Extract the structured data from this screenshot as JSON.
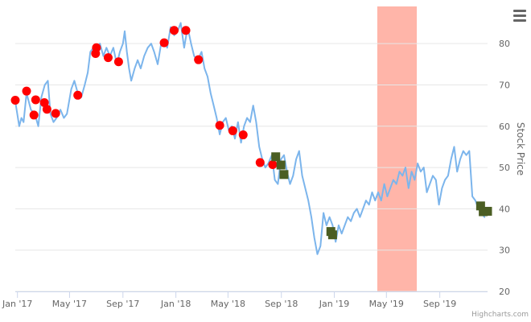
{
  "chart_data": {
    "type": "line",
    "title": "",
    "xlabel": "",
    "ylabel": "Stock Price",
    "ylim": [
      20,
      89
    ],
    "xlim": [
      "2016-12-27",
      "2019-12-20"
    ],
    "grid": "horizontal",
    "legend": "none",
    "x_ticks": [
      {
        "date": "2017-01-01",
        "label": "Jan '17"
      },
      {
        "date": "2017-05-01",
        "label": "May '17"
      },
      {
        "date": "2017-09-01",
        "label": "Sep '17"
      },
      {
        "date": "2018-01-01",
        "label": "Jan '18"
      },
      {
        "date": "2018-05-01",
        "label": "May '18"
      },
      {
        "date": "2018-09-01",
        "label": "Sep '18"
      },
      {
        "date": "2019-01-01",
        "label": "Jan '19"
      },
      {
        "date": "2019-05-01",
        "label": "May '19"
      },
      {
        "date": "2019-09-01",
        "label": "Sep '19"
      }
    ],
    "y_ticks": [
      20,
      30,
      40,
      50,
      60,
      70,
      80
    ],
    "band": {
      "from": "2019-04-10",
      "to": "2019-07-10",
      "color": "#ffb5a9"
    },
    "series": [
      {
        "type": "line",
        "color": "#7cb5ec",
        "points": [
          [
            "2016-12-27",
            66
          ],
          [
            "2017-01-05",
            60
          ],
          [
            "2017-01-10",
            62
          ],
          [
            "2017-01-15",
            61
          ],
          [
            "2017-01-22",
            68
          ],
          [
            "2017-02-01",
            64
          ],
          [
            "2017-02-10",
            63
          ],
          [
            "2017-02-18",
            60
          ],
          [
            "2017-02-25",
            67
          ],
          [
            "2017-03-05",
            70
          ],
          [
            "2017-03-12",
            71
          ],
          [
            "2017-03-18",
            63
          ],
          [
            "2017-03-25",
            61
          ],
          [
            "2017-04-01",
            62
          ],
          [
            "2017-04-10",
            64
          ],
          [
            "2017-04-18",
            62
          ],
          [
            "2017-04-25",
            63
          ],
          [
            "2017-05-05",
            69
          ],
          [
            "2017-05-12",
            71
          ],
          [
            "2017-05-20",
            68
          ],
          [
            "2017-05-28",
            67
          ],
          [
            "2017-06-05",
            70
          ],
          [
            "2017-06-12",
            73
          ],
          [
            "2017-06-18",
            78
          ],
          [
            "2017-06-25",
            79
          ],
          [
            "2017-07-02",
            78
          ],
          [
            "2017-07-10",
            80
          ],
          [
            "2017-07-18",
            77
          ],
          [
            "2017-07-25",
            79
          ],
          [
            "2017-08-02",
            77
          ],
          [
            "2017-08-10",
            79
          ],
          [
            "2017-08-18",
            75
          ],
          [
            "2017-08-25",
            78
          ],
          [
            "2017-09-01",
            80
          ],
          [
            "2017-09-05",
            83
          ],
          [
            "2017-09-10",
            78
          ],
          [
            "2017-09-15",
            74
          ],
          [
            "2017-09-20",
            71
          ],
          [
            "2017-09-28",
            74
          ],
          [
            "2017-10-05",
            76
          ],
          [
            "2017-10-12",
            74
          ],
          [
            "2017-10-20",
            77
          ],
          [
            "2017-10-28",
            79
          ],
          [
            "2017-11-05",
            80
          ],
          [
            "2017-11-12",
            78
          ],
          [
            "2017-11-20",
            75
          ],
          [
            "2017-11-28",
            80
          ],
          [
            "2017-12-05",
            81
          ],
          [
            "2017-12-12",
            79
          ],
          [
            "2017-12-20",
            84
          ],
          [
            "2017-12-28",
            82
          ],
          [
            "2018-01-05",
            83
          ],
          [
            "2018-01-12",
            85
          ],
          [
            "2018-01-20",
            79
          ],
          [
            "2018-01-28",
            84
          ],
          [
            "2018-02-05",
            80
          ],
          [
            "2018-02-12",
            77
          ],
          [
            "2018-02-20",
            76
          ],
          [
            "2018-03-01",
            78
          ],
          [
            "2018-03-08",
            74
          ],
          [
            "2018-03-15",
            72
          ],
          [
            "2018-03-22",
            68
          ],
          [
            "2018-03-29",
            65
          ],
          [
            "2018-04-05",
            62
          ],
          [
            "2018-04-12",
            58
          ],
          [
            "2018-04-19",
            61
          ],
          [
            "2018-04-26",
            62
          ],
          [
            "2018-05-03",
            59
          ],
          [
            "2018-05-10",
            60
          ],
          [
            "2018-05-17",
            57
          ],
          [
            "2018-05-24",
            61
          ],
          [
            "2018-05-31",
            56
          ],
          [
            "2018-06-07",
            60
          ],
          [
            "2018-06-14",
            62
          ],
          [
            "2018-06-21",
            61
          ],
          [
            "2018-06-28",
            65
          ],
          [
            "2018-07-05",
            61
          ],
          [
            "2018-07-12",
            55
          ],
          [
            "2018-07-19",
            52
          ],
          [
            "2018-07-26",
            50
          ],
          [
            "2018-08-02",
            51
          ],
          [
            "2018-08-10",
            53
          ],
          [
            "2018-08-17",
            47
          ],
          [
            "2018-08-24",
            46
          ],
          [
            "2018-08-31",
            52
          ],
          [
            "2018-09-07",
            53
          ],
          [
            "2018-09-14",
            49
          ],
          [
            "2018-09-21",
            46
          ],
          [
            "2018-09-28",
            48
          ],
          [
            "2018-10-05",
            52
          ],
          [
            "2018-10-12",
            54
          ],
          [
            "2018-10-19",
            48
          ],
          [
            "2018-10-26",
            45
          ],
          [
            "2018-11-02",
            42
          ],
          [
            "2018-11-09",
            38
          ],
          [
            "2018-11-16",
            33
          ],
          [
            "2018-11-23",
            29
          ],
          [
            "2018-11-30",
            31
          ],
          [
            "2018-12-07",
            39
          ],
          [
            "2018-12-14",
            36
          ],
          [
            "2018-12-21",
            38
          ],
          [
            "2018-12-28",
            36
          ],
          [
            "2019-01-04",
            32
          ],
          [
            "2019-01-11",
            36
          ],
          [
            "2019-01-18",
            34
          ],
          [
            "2019-01-25",
            36
          ],
          [
            "2019-02-01",
            38
          ],
          [
            "2019-02-08",
            37
          ],
          [
            "2019-02-15",
            39
          ],
          [
            "2019-02-22",
            40
          ],
          [
            "2019-03-01",
            38
          ],
          [
            "2019-03-08",
            40
          ],
          [
            "2019-03-15",
            42
          ],
          [
            "2019-03-22",
            41
          ],
          [
            "2019-03-29",
            44
          ],
          [
            "2019-04-05",
            42
          ],
          [
            "2019-04-12",
            44
          ],
          [
            "2019-04-19",
            42
          ],
          [
            "2019-04-26",
            46
          ],
          [
            "2019-05-03",
            43
          ],
          [
            "2019-05-10",
            45
          ],
          [
            "2019-05-17",
            47
          ],
          [
            "2019-05-24",
            46
          ],
          [
            "2019-05-31",
            49
          ],
          [
            "2019-06-07",
            48
          ],
          [
            "2019-06-14",
            50
          ],
          [
            "2019-06-21",
            45
          ],
          [
            "2019-06-28",
            49
          ],
          [
            "2019-07-05",
            47
          ],
          [
            "2019-07-12",
            51
          ],
          [
            "2019-07-19",
            49
          ],
          [
            "2019-07-26",
            50
          ],
          [
            "2019-08-02",
            44
          ],
          [
            "2019-08-09",
            46
          ],
          [
            "2019-08-16",
            48
          ],
          [
            "2019-08-23",
            47
          ],
          [
            "2019-08-30",
            41
          ],
          [
            "2019-09-06",
            45
          ],
          [
            "2019-09-13",
            47
          ],
          [
            "2019-09-20",
            48
          ],
          [
            "2019-09-27",
            52
          ],
          [
            "2019-10-04",
            55
          ],
          [
            "2019-10-11",
            49
          ],
          [
            "2019-10-18",
            52
          ],
          [
            "2019-10-25",
            54
          ],
          [
            "2019-11-01",
            53
          ],
          [
            "2019-11-08",
            54
          ],
          [
            "2019-11-15",
            43
          ],
          [
            "2019-11-22",
            42
          ],
          [
            "2019-11-29",
            40
          ],
          [
            "2019-12-06",
            39
          ],
          [
            "2019-12-13",
            38
          ]
        ]
      },
      {
        "type": "scatter",
        "marker": "circle",
        "color": "#ff0000",
        "points": [
          [
            "2016-12-27",
            66.3
          ],
          [
            "2017-01-22",
            68.5
          ],
          [
            "2017-02-08",
            62.7
          ],
          [
            "2017-02-12",
            66.4
          ],
          [
            "2017-03-04",
            65.7
          ],
          [
            "2017-03-10",
            64.1
          ],
          [
            "2017-03-30",
            63.1
          ],
          [
            "2017-05-20",
            67.5
          ],
          [
            "2017-06-30",
            77.6
          ],
          [
            "2017-07-02",
            79.0
          ],
          [
            "2017-07-29",
            76.6
          ],
          [
            "2017-08-22",
            75.6
          ],
          [
            "2017-12-05",
            80.2
          ],
          [
            "2017-12-28",
            83.2
          ],
          [
            "2018-01-24",
            83.2
          ],
          [
            "2018-02-22",
            76.1
          ],
          [
            "2018-04-12",
            60.2
          ],
          [
            "2018-05-12",
            58.9
          ],
          [
            "2018-06-05",
            57.9
          ],
          [
            "2018-07-14",
            51.2
          ],
          [
            "2018-08-12",
            50.7
          ]
        ]
      },
      {
        "type": "scatter",
        "marker": "square",
        "color": "#4b5e23",
        "points": [
          [
            "2018-08-19",
            52.6
          ],
          [
            "2018-08-31",
            50.6
          ],
          [
            "2018-09-07",
            48.3
          ],
          [
            "2018-12-24",
            34.5
          ],
          [
            "2018-12-28",
            33.7
          ],
          [
            "2019-12-04",
            40.7
          ],
          [
            "2019-12-10",
            39.3
          ],
          [
            "2019-12-20",
            39.4
          ]
        ]
      }
    ]
  },
  "credits": "Highcharts.com",
  "icons": {
    "menu": "hamburger-menu-icon"
  }
}
